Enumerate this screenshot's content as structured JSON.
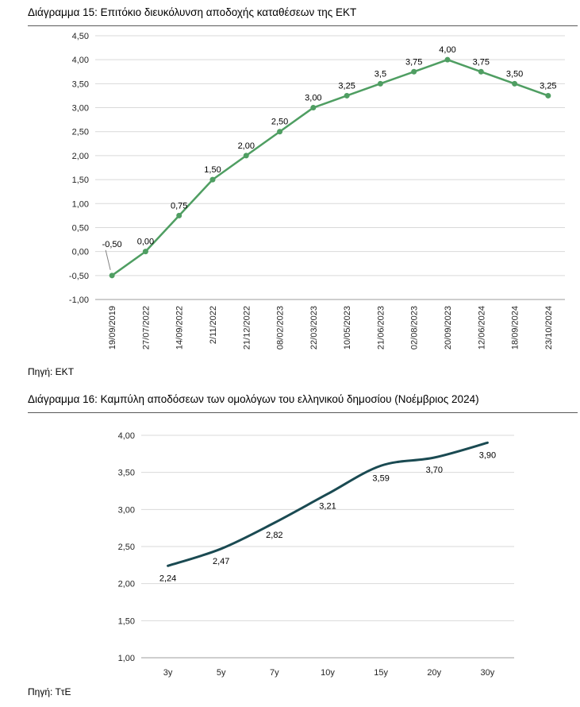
{
  "page": {
    "background": "#ffffff"
  },
  "chart_data": [
    {
      "type": "line",
      "title": "Διάγραμμα 15: Επιτόκιο διευκόλυνση αποδοχής καταθέσεων της ΕΚΤ",
      "source": "Πηγή: ΕΚΤ",
      "categories": [
        "19/09/2019",
        "27/07/2022",
        "14/09/2022",
        "2/11/2022",
        "21/12/2022",
        "08/02/2023",
        "22/03/2023",
        "10/05/2023",
        "21/06/2023",
        "02/08/2023",
        "20/09/2023",
        "12/06/2024",
        "18/09/2024",
        "23/10/2024"
      ],
      "values": [
        -0.5,
        0,
        0.75,
        1.5,
        2,
        2.5,
        3,
        3.25,
        3.5,
        3.75,
        4,
        3.75,
        3.5,
        3.25
      ],
      "point_labels": [
        "-0,50",
        "0,00",
        "0,75",
        "1,50",
        "2,00",
        "2,50",
        "3,00",
        "3,25",
        "3,5",
        "3,75",
        "4,00",
        "3,75",
        "3,50",
        "3,25"
      ],
      "ylim": [
        -1,
        4.5
      ],
      "ytick_labels": [
        "4,50",
        "4,00",
        "3,50",
        "3,00",
        "2,50",
        "2,00",
        "1,50",
        "1,00",
        "0,50",
        "0,00",
        "-0,50",
        "-1,00"
      ],
      "line_color": "#4f9e62",
      "grid_color": "#d9d9d9",
      "marker": true,
      "grid": true,
      "rotate_x_labels": true,
      "first_label_leader": true,
      "label_position": "above"
    },
    {
      "type": "line",
      "title": "Διάγραμμα 16: Καμπύλη αποδόσεων των ομολόγων του ελληνικού δημοσίου (Νοέμβριος 2024)",
      "source": "Πηγή: ΤτΕ",
      "categories": [
        "3y",
        "5y",
        "7y",
        "10y",
        "15y",
        "20y",
        "30y"
      ],
      "values": [
        2.24,
        2.47,
        2.82,
        3.21,
        3.59,
        3.7,
        3.9
      ],
      "point_labels": [
        "2,24",
        "2,47",
        "2,82",
        "3,21",
        "3,59",
        "3,70",
        "3,90"
      ],
      "ylim": [
        1,
        4
      ],
      "ytick_labels": [
        "4,00",
        "3,50",
        "3,00",
        "2,50",
        "2,00",
        "1,50",
        "1,00"
      ],
      "line_color": "#1a4a52",
      "grid_color": "#d9d9d9",
      "marker": false,
      "grid": true,
      "smooth": true,
      "label_position": "below"
    }
  ]
}
